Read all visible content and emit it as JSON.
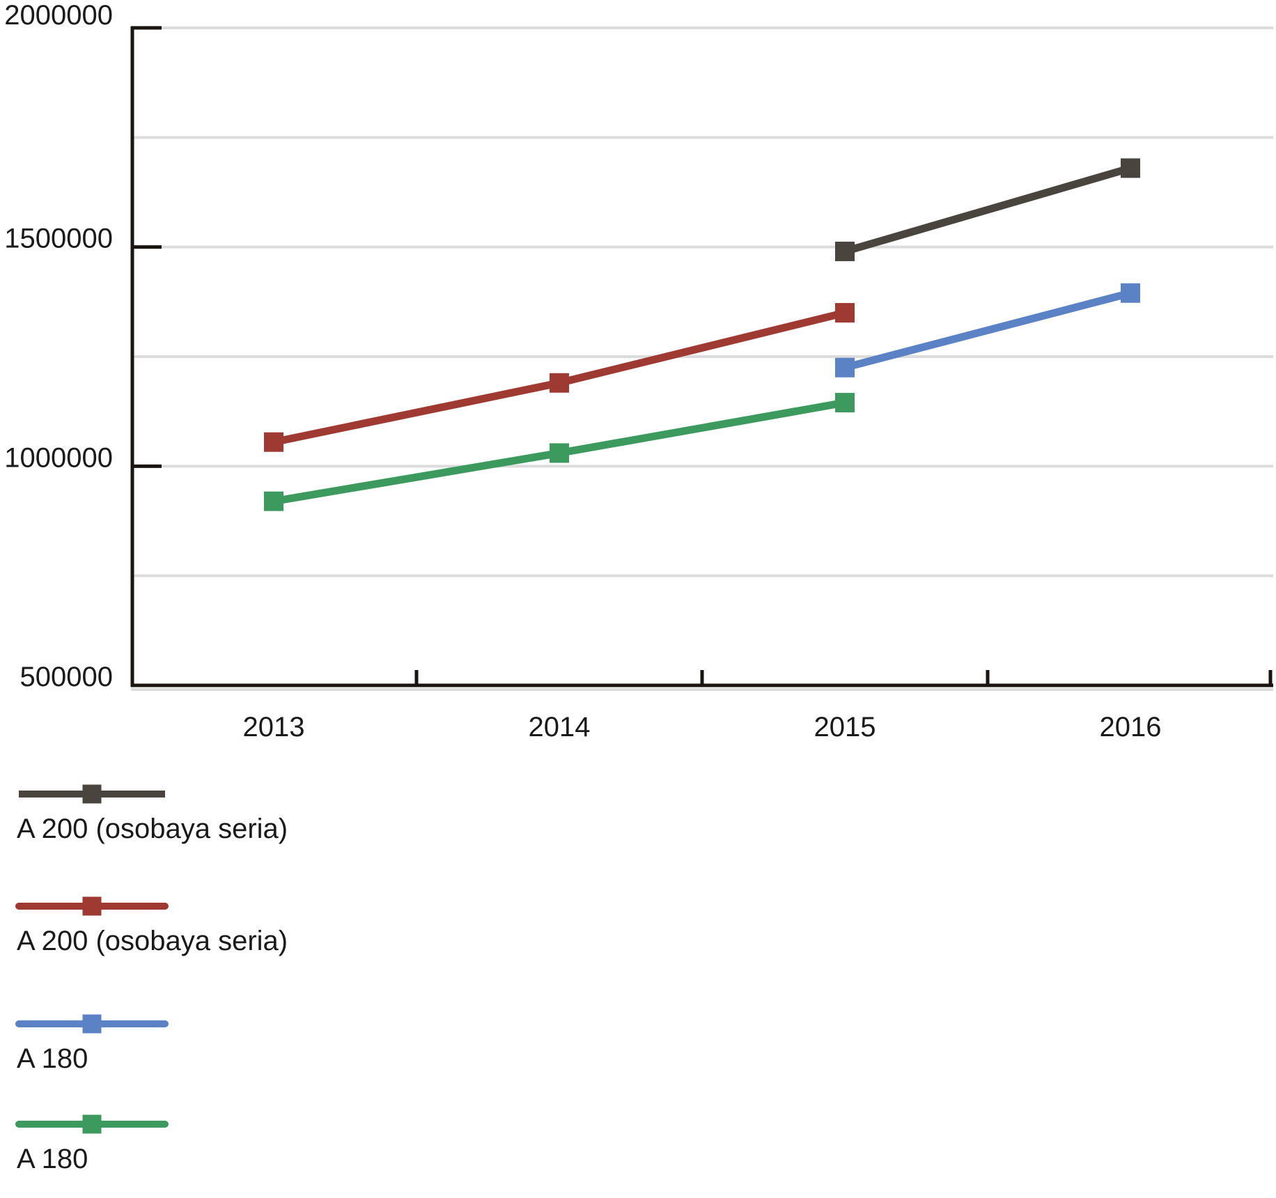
{
  "chart_data": {
    "type": "line",
    "title": "",
    "xlabel": "",
    "ylabel": "",
    "categories": [
      "2013",
      "2014",
      "2015",
      "2016"
    ],
    "series": [
      {
        "name": "A 200 (osobaya seria)",
        "color": "#4a443e",
        "values": [
          null,
          null,
          1490000,
          1680000
        ]
      },
      {
        "name": "A 200 (osobaya seria)",
        "color": "#9e3a32",
        "values": [
          1055000,
          1190000,
          1350000,
          null
        ]
      },
      {
        "name": "A 180",
        "color": "#5b82c4",
        "values": [
          null,
          null,
          1225000,
          1395000
        ]
      },
      {
        "name": "A 180",
        "color": "#3d9a5e",
        "values": [
          920000,
          1030000,
          1145000,
          null
        ]
      }
    ],
    "ylim": [
      500000,
      2000000
    ],
    "y_tick_step": 500000,
    "y_grid_step": 250000,
    "y_tick_labels": [
      "500000",
      "1000000",
      "1500000",
      "2000000"
    ],
    "grid": true,
    "marker": "square",
    "legend_position": "bottom-left",
    "legend_entries": [
      "A 200 (osobaya seria)",
      "A 200 (osobaya seria)",
      "A 180",
      "A 180"
    ],
    "colors": {
      "background": "#ffffff",
      "grid": "#dcdcdc",
      "axis": "#1a1410",
      "text": "#1a1a1a"
    }
  }
}
